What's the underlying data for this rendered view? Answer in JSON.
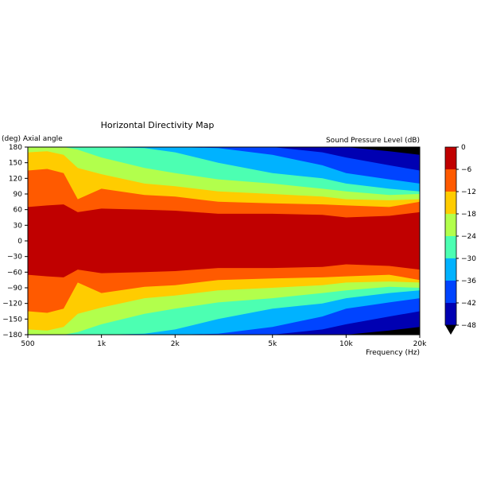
{
  "chart_data": {
    "type": "heatmap",
    "title": "Horizontal Directivity Map",
    "ylabel": "(deg) Axial angle",
    "xlabel": "Frequency (Hz)",
    "colorbar_label": "Sound Pressure Level (dB)",
    "x_scale": "log",
    "xlim": [
      500,
      20000
    ],
    "ylim": [
      -180,
      180
    ],
    "x_ticks": [
      {
        "value": 500,
        "label": "500"
      },
      {
        "value": 1000,
        "label": "1k"
      },
      {
        "value": 2000,
        "label": "2k"
      },
      {
        "value": 5000,
        "label": "5k"
      },
      {
        "value": 10000,
        "label": "10k"
      },
      {
        "value": 20000,
        "label": "20k"
      }
    ],
    "y_ticks": [
      180,
      150,
      120,
      90,
      60,
      30,
      0,
      -30,
      -60,
      -90,
      -120,
      -150,
      -180
    ],
    "colorbar_ticks": [
      0,
      -6,
      -12,
      -18,
      -24,
      -30,
      -36,
      -42,
      -48
    ],
    "levels": [
      {
        "min": -6,
        "max": 0,
        "color": "#c00000"
      },
      {
        "min": -12,
        "max": -6,
        "color": "#ff5a00"
      },
      {
        "min": -18,
        "max": -12,
        "color": "#ffcc00"
      },
      {
        "min": -24,
        "max": -18,
        "color": "#b2ff4c"
      },
      {
        "min": -30,
        "max": -24,
        "color": "#4cffb2"
      },
      {
        "min": -36,
        "max": -30,
        "color": "#00b2ff"
      },
      {
        "min": -42,
        "max": -36,
        "color": "#0044ff"
      },
      {
        "min": -48,
        "max": -42,
        "color": "#0000b2"
      },
      {
        "min": -60,
        "max": -48,
        "color": "#000000"
      }
    ],
    "contours": [
      {
        "level": -6,
        "angle_upper": [
          [
            500,
            65
          ],
          [
            600,
            68
          ],
          [
            700,
            70
          ],
          [
            800,
            55
          ],
          [
            1000,
            62
          ],
          [
            1500,
            60
          ],
          [
            2000,
            58
          ],
          [
            3000,
            52
          ],
          [
            5000,
            52
          ],
          [
            8000,
            50
          ],
          [
            10000,
            45
          ],
          [
            15000,
            48
          ],
          [
            20000,
            55
          ]
        ]
      },
      {
        "level": -12,
        "angle_upper": [
          [
            500,
            135
          ],
          [
            600,
            138
          ],
          [
            700,
            130
          ],
          [
            800,
            80
          ],
          [
            1000,
            100
          ],
          [
            1500,
            88
          ],
          [
            2000,
            85
          ],
          [
            3000,
            75
          ],
          [
            5000,
            72
          ],
          [
            8000,
            70
          ],
          [
            10000,
            68
          ],
          [
            15000,
            65
          ],
          [
            20000,
            75
          ]
        ]
      },
      {
        "level": -18,
        "angle_upper": [
          [
            500,
            170
          ],
          [
            600,
            172
          ],
          [
            700,
            165
          ],
          [
            800,
            140
          ],
          [
            1000,
            128
          ],
          [
            1500,
            110
          ],
          [
            2000,
            105
          ],
          [
            3000,
            95
          ],
          [
            5000,
            90
          ],
          [
            8000,
            85
          ],
          [
            10000,
            80
          ],
          [
            15000,
            78
          ],
          [
            20000,
            80
          ]
        ]
      },
      {
        "level": -24,
        "angle_upper": [
          [
            500,
            180
          ],
          [
            600,
            180
          ],
          [
            700,
            180
          ],
          [
            800,
            175
          ],
          [
            1000,
            160
          ],
          [
            1500,
            140
          ],
          [
            2000,
            130
          ],
          [
            3000,
            118
          ],
          [
            5000,
            110
          ],
          [
            8000,
            100
          ],
          [
            10000,
            95
          ],
          [
            15000,
            88
          ],
          [
            20000,
            90
          ]
        ]
      },
      {
        "level": -30,
        "angle_upper": [
          [
            500,
            180
          ],
          [
            600,
            180
          ],
          [
            700,
            180
          ],
          [
            800,
            180
          ],
          [
            1000,
            180
          ],
          [
            1500,
            178
          ],
          [
            2000,
            170
          ],
          [
            3000,
            150
          ],
          [
            5000,
            130
          ],
          [
            8000,
            120
          ],
          [
            10000,
            110
          ],
          [
            15000,
            100
          ],
          [
            20000,
            95
          ]
        ]
      },
      {
        "level": -36,
        "angle_upper": [
          [
            500,
            180
          ],
          [
            600,
            180
          ],
          [
            700,
            180
          ],
          [
            800,
            180
          ],
          [
            1000,
            180
          ],
          [
            1500,
            180
          ],
          [
            2000,
            180
          ],
          [
            3000,
            178
          ],
          [
            5000,
            165
          ],
          [
            8000,
            145
          ],
          [
            10000,
            130
          ],
          [
            15000,
            118
          ],
          [
            20000,
            110
          ]
        ]
      },
      {
        "level": -42,
        "angle_upper": [
          [
            500,
            180
          ],
          [
            600,
            180
          ],
          [
            700,
            180
          ],
          [
            800,
            180
          ],
          [
            1000,
            180
          ],
          [
            1500,
            180
          ],
          [
            2000,
            180
          ],
          [
            3000,
            180
          ],
          [
            5000,
            180
          ],
          [
            8000,
            170
          ],
          [
            10000,
            160
          ],
          [
            15000,
            145
          ],
          [
            20000,
            135
          ]
        ]
      },
      {
        "level": -48,
        "angle_upper": [
          [
            500,
            180
          ],
          [
            600,
            180
          ],
          [
            700,
            180
          ],
          [
            800,
            180
          ],
          [
            1000,
            180
          ],
          [
            1500,
            180
          ],
          [
            2000,
            180
          ],
          [
            3000,
            180
          ],
          [
            5000,
            180
          ],
          [
            8000,
            180
          ],
          [
            10000,
            180
          ],
          [
            15000,
            172
          ],
          [
            20000,
            165
          ]
        ]
      }
    ],
    "grid": false
  }
}
